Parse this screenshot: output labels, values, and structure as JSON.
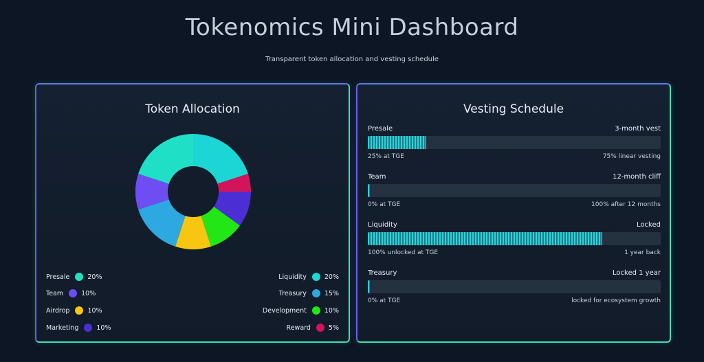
{
  "header": {
    "title": "Tokenomics Mini Dashboard",
    "subtitle": "Transparent token allocation and vesting schedule"
  },
  "allocation": {
    "title": "Token Allocation"
  },
  "vesting": {
    "title": "Vesting Schedule",
    "items": [
      {
        "label": "Presale",
        "term": "3-month vest",
        "unlock": "25% at TGE",
        "note": "75% linear vesting",
        "progress": 20
      },
      {
        "label": "Team",
        "term": "12-month cliff",
        "unlock": "0% at TGE",
        "note": "100% after 12 months",
        "progress": 0
      },
      {
        "label": "Liquidity",
        "term": "Locked",
        "unlock": "100% unlocked at TGE",
        "note": "1 year back",
        "progress": 80
      },
      {
        "label": "Treasury",
        "term": "Locked 1 year",
        "unlock": "0% at TGE",
        "note": "locked for ecosystem growth",
        "progress": 0
      }
    ]
  },
  "chart_data": {
    "type": "pie",
    "title": "Token Allocation",
    "categories": [
      "Liquidity",
      "Treasury",
      "Development",
      "Reward",
      "Presale",
      "Team",
      "Airdrop",
      "Marketing"
    ],
    "values": [
      20,
      15,
      10,
      5,
      20,
      10,
      10,
      10
    ],
    "labels": [
      "20%",
      "15%",
      "10%",
      "5%",
      "20%",
      "10%",
      "10%",
      "10%"
    ],
    "colors": {
      "Presale": "#1fe0c6",
      "Liquidity": "#1bd6d4",
      "Reward": "#d4145a",
      "Marketing": "#4b2fd4",
      "Development": "#22e616",
      "Airdrop": "#f7c610",
      "Treasury": "#2ea8e0",
      "Team": "#6e4ef2"
    },
    "donut_order": [
      "Liquidity",
      "Reward",
      "Marketing",
      "Development",
      "Airdrop",
      "Treasury",
      "Team",
      "Presale"
    ],
    "legend_left": [
      "Presale",
      "Team",
      "Airdrop",
      "Marketing"
    ],
    "legend_right": [
      "Liquidity",
      "Treasury",
      "Development",
      "Reward"
    ]
  }
}
